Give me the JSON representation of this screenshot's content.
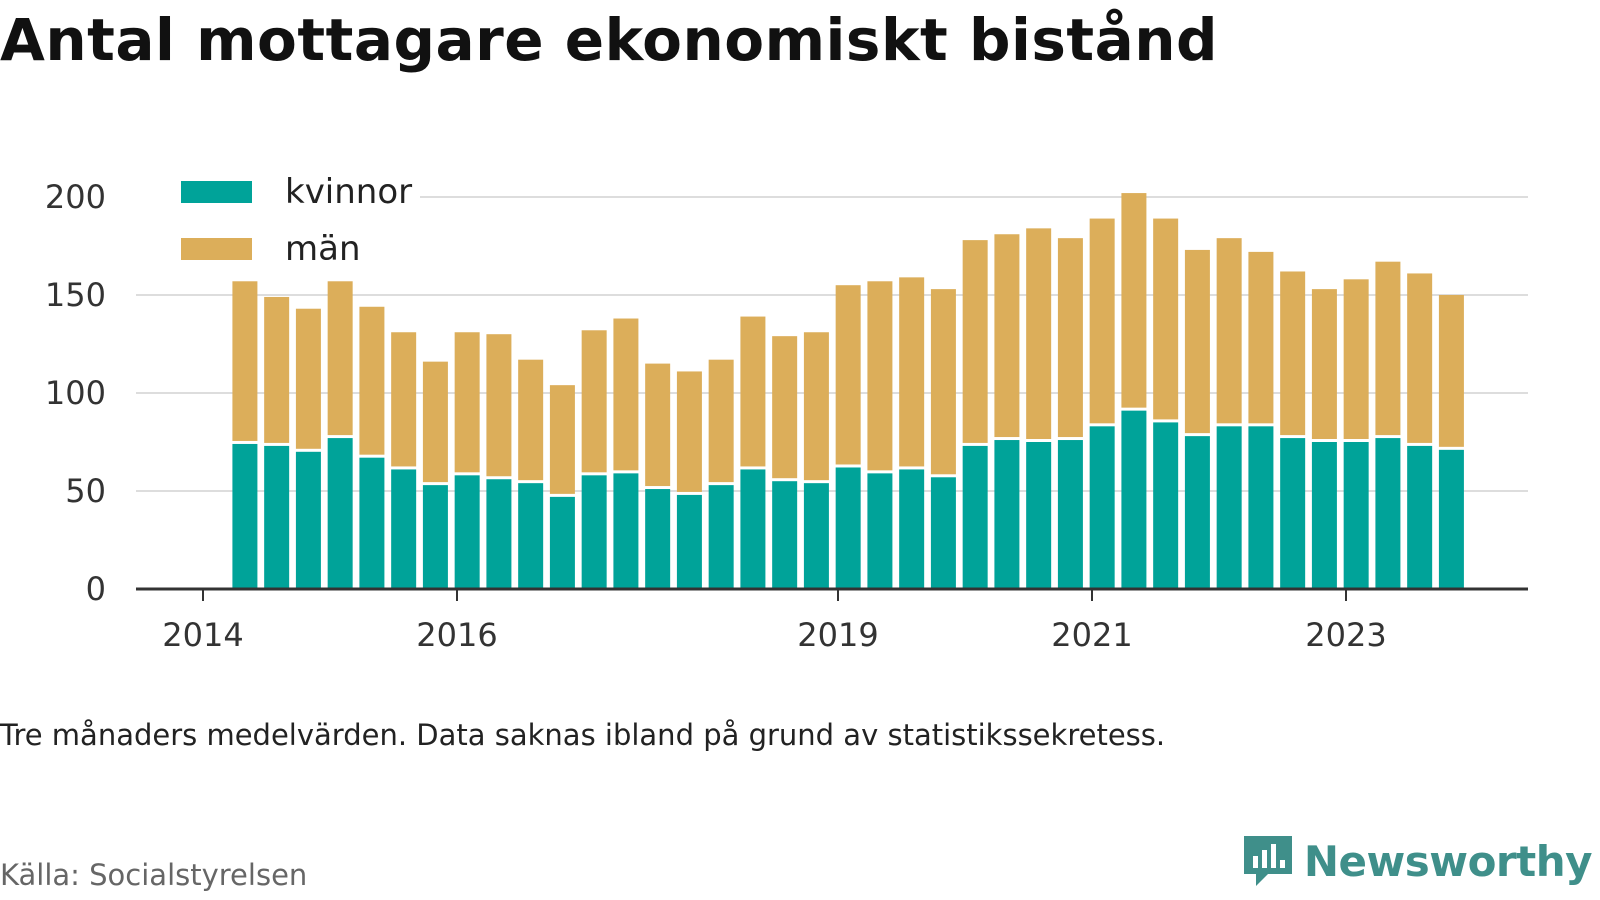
{
  "title": "Antal mottagare ekonomiskt bistånd",
  "note": "Tre månaders medelvärden. Data saknas ibland på grund av statistikssekretess.",
  "source": "Källa: Socialstyrelsen",
  "brand": "Newsworthy",
  "colors": {
    "kvinnor": "#00a399",
    "man": "#dcae5a",
    "brand": "#3f8f8a",
    "grid": "#dddddd",
    "axis": "#333333"
  },
  "chart_data": {
    "type": "bar",
    "stacked": true,
    "ylim": [
      0,
      200
    ],
    "y_ticks": [
      0,
      50,
      100,
      150,
      200
    ],
    "x_tick_labels": [
      {
        "label": "2014",
        "x": 2014.0
      },
      {
        "label": "2016",
        "x": 2016.0
      },
      {
        "label": "2019",
        "x": 2019.0
      },
      {
        "label": "2021",
        "x": 2021.0
      },
      {
        "label": "2023",
        "x": 2023.0
      }
    ],
    "xlim": [
      2013.5,
      2024.5
    ],
    "grid": true,
    "legend_position": "top-left",
    "x": [
      2014.33,
      2014.58,
      2014.83,
      2015.08,
      2015.33,
      2015.58,
      2015.83,
      2016.08,
      2016.33,
      2016.58,
      2016.83,
      2017.08,
      2017.33,
      2017.58,
      2017.83,
      2018.08,
      2018.33,
      2018.58,
      2018.83,
      2019.08,
      2019.33,
      2019.58,
      2019.83,
      2020.08,
      2020.33,
      2020.58,
      2020.83,
      2021.08,
      2021.33,
      2021.58,
      2021.83,
      2022.08,
      2022.33,
      2022.58,
      2022.83,
      2023.08,
      2023.33,
      2023.58,
      2023.83
    ],
    "series": [
      {
        "name": "kvinnor",
        "values": [
          74,
          73,
          70,
          77,
          67,
          61,
          53,
          58,
          56,
          54,
          47,
          58,
          59,
          51,
          48,
          53,
          61,
          55,
          54,
          62,
          59,
          61,
          57,
          73,
          76,
          75,
          76,
          83,
          91,
          85,
          78,
          83,
          83,
          77,
          75,
          75,
          77,
          73,
          71
        ]
      },
      {
        "name": "män",
        "values": [
          83,
          76,
          73,
          80,
          77,
          70,
          63,
          73,
          74,
          63,
          57,
          74,
          79,
          64,
          63,
          64,
          78,
          74,
          77,
          93,
          98,
          98,
          96,
          105,
          105,
          109,
          103,
          106,
          111,
          104,
          95,
          96,
          89,
          85,
          78,
          83,
          90,
          88,
          79
        ]
      }
    ]
  }
}
